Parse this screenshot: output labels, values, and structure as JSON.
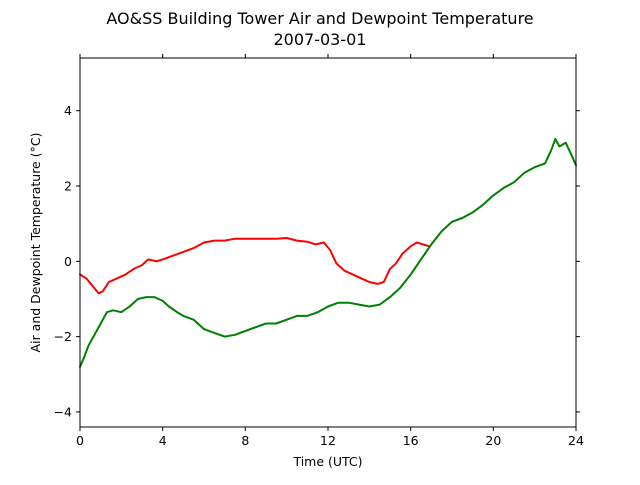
{
  "chart_data": {
    "type": "line",
    "title": "AO&SS Building Tower Air and Dewpoint Temperature",
    "subtitle": "2007-03-01",
    "xlabel": "Time (UTC)",
    "ylabel": "Air and Dewpoint Temperature (°C)",
    "xlim": [
      0,
      24
    ],
    "ylim": [
      -4.4,
      5.4
    ],
    "x_ticks": [
      0,
      4,
      8,
      12,
      16,
      20,
      24
    ],
    "x_tick_labels": [
      "0",
      "4",
      "8",
      "12",
      "16",
      "20",
      "24"
    ],
    "y_ticks": [
      -4,
      -2,
      0,
      2,
      4
    ],
    "y_tick_labels": [
      "−4",
      "−2",
      "0",
      "2",
      "4"
    ],
    "grid": false,
    "series": [
      {
        "color": "#ff0000",
        "x": [
          0,
          0.3,
          0.6,
          0.9,
          1.1,
          1.4,
          1.8,
          2.2,
          2.6,
          3.0,
          3.3,
          3.7,
          4.0,
          4.5,
          5.0,
          5.5,
          6.0,
          6.5,
          7.0,
          7.5,
          8.0,
          8.5,
          9.0,
          9.5,
          10.0,
          10.5,
          11.0,
          11.4,
          11.8,
          12.1,
          12.4,
          12.8,
          13.2,
          13.6,
          14.0,
          14.4,
          14.7,
          15.0,
          15.3,
          15.6,
          16.0,
          16.3,
          16.6,
          16.9
        ],
        "y": [
          -0.35,
          -0.45,
          -0.65,
          -0.85,
          -0.8,
          -0.55,
          -0.45,
          -0.35,
          -0.2,
          -0.1,
          0.05,
          0.0,
          0.05,
          0.15,
          0.25,
          0.35,
          0.5,
          0.55,
          0.55,
          0.6,
          0.6,
          0.6,
          0.6,
          0.6,
          0.62,
          0.55,
          0.52,
          0.45,
          0.5,
          0.3,
          -0.05,
          -0.25,
          -0.35,
          -0.45,
          -0.55,
          -0.6,
          -0.55,
          -0.2,
          -0.05,
          0.2,
          0.4,
          0.5,
          0.45,
          0.4
        ]
      },
      {
        "color": "#008000",
        "x": [
          0,
          0.2,
          0.4,
          0.7,
          1.0,
          1.3,
          1.6,
          2.0,
          2.4,
          2.8,
          3.2,
          3.6,
          4.0,
          4.3,
          4.7,
          5.0,
          5.5,
          6.0,
          6.5,
          7.0,
          7.5,
          8.0,
          8.5,
          9.0,
          9.5,
          10.0,
          10.5,
          11.0,
          11.5,
          12.0,
          12.5,
          13.0,
          13.5,
          14.0,
          14.5,
          15.0,
          15.5,
          16.0,
          16.5,
          17.0,
          17.5,
          18.0,
          18.5,
          19.0,
          19.5,
          20.0,
          20.5,
          21.0,
          21.5,
          22.0,
          22.5,
          22.8,
          23.0,
          23.2,
          23.5,
          23.8,
          24.0
        ],
        "y": [
          -2.8,
          -2.55,
          -2.25,
          -1.95,
          -1.65,
          -1.35,
          -1.3,
          -1.35,
          -1.2,
          -1.0,
          -0.95,
          -0.95,
          -1.05,
          -1.2,
          -1.35,
          -1.45,
          -1.55,
          -1.8,
          -1.9,
          -2.0,
          -1.95,
          -1.85,
          -1.75,
          -1.65,
          -1.65,
          -1.55,
          -1.45,
          -1.45,
          -1.35,
          -1.2,
          -1.1,
          -1.1,
          -1.15,
          -1.2,
          -1.15,
          -0.95,
          -0.7,
          -0.35,
          0.05,
          0.45,
          0.8,
          1.05,
          1.15,
          1.3,
          1.5,
          1.75,
          1.95,
          2.1,
          2.35,
          2.5,
          2.6,
          2.95,
          3.25,
          3.05,
          3.15,
          2.8,
          2.55
        ]
      }
    ]
  }
}
